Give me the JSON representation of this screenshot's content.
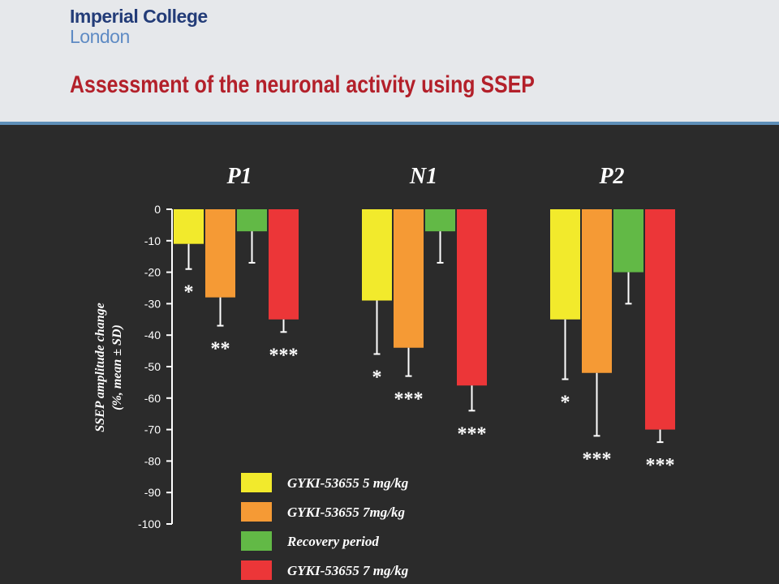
{
  "header": {
    "logo_line1": "Imperial College",
    "logo_line2": "London",
    "title": "Assessment of the neuronal activity using SSEP"
  },
  "chart_data": {
    "type": "bar",
    "title": "",
    "ylabel_line1": "SSEP amplitude change",
    "ylabel_line2": "(%, mean ± SD)",
    "ylim": [
      -100,
      0
    ],
    "yticks": [
      0,
      -10,
      -20,
      -30,
      -40,
      -50,
      -60,
      -70,
      -80,
      -90,
      -100
    ],
    "grid": false,
    "legend_position": "bottom-center",
    "categories": [
      "P1",
      "N1",
      "P2"
    ],
    "series": [
      {
        "name": "GYKI-53655 5 mg/kg",
        "color": "#f2ea2c",
        "values": [
          -11,
          -29,
          -35
        ],
        "sd": [
          8,
          17,
          19
        ],
        "significance": [
          "*",
          "*",
          "*"
        ]
      },
      {
        "name": "GYKI-53655 7mg/kg",
        "color": "#f59a35",
        "values": [
          -28,
          -44,
          -52
        ],
        "sd": [
          9,
          9,
          20
        ],
        "significance": [
          "**",
          "***",
          "***"
        ]
      },
      {
        "name": "Recovery period",
        "color": "#62b946",
        "values": [
          -7,
          -7,
          -20
        ],
        "sd": [
          10,
          10,
          10
        ],
        "significance": [
          "",
          "",
          ""
        ]
      },
      {
        "name": "GYKI-53655 7 mg/kg",
        "color": "#ec3638",
        "values": [
          -35,
          -56,
          -70
        ],
        "sd": [
          4,
          8,
          4
        ],
        "significance": [
          "***",
          "***",
          "***"
        ]
      }
    ]
  }
}
